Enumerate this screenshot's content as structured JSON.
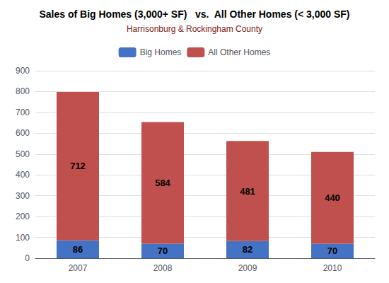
{
  "chart_data": {
    "type": "bar",
    "stacked": true,
    "title": "Sales of Big Homes (3,000+ SF)   vs.  All Other Homes (< 3,000 SF)",
    "subtitle": "Harrisonburg & Rockingham County",
    "categories": [
      "2007",
      "2008",
      "2009",
      "2010"
    ],
    "series": [
      {
        "name": "Big Homes",
        "color": "#4472C4",
        "values": [
          86,
          70,
          82,
          70
        ]
      },
      {
        "name": "All Other Homes",
        "color": "#C0504D",
        "values": [
          712,
          584,
          481,
          440
        ]
      }
    ],
    "ylim": [
      0,
      900
    ],
    "yticks": [
      0,
      100,
      200,
      300,
      400,
      500,
      600,
      700,
      800,
      900
    ],
    "grid": true,
    "legend": "top",
    "data_labels": true
  }
}
